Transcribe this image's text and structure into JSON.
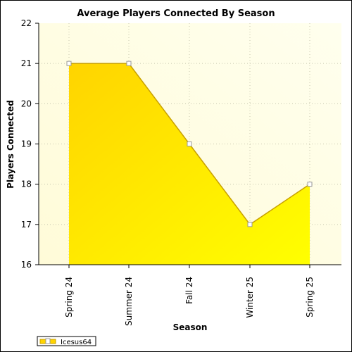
{
  "chart_data": {
    "type": "area",
    "title": "Average Players Connected By Season",
    "xlabel": "Season",
    "ylabel": "Players Connected",
    "categories": [
      "Spring 24",
      "Summer 24",
      "Fall 24",
      "Winter 25",
      "Spring 25"
    ],
    "series": [
      {
        "name": "Icesus64",
        "values": [
          21,
          21,
          19,
          17,
          18
        ]
      }
    ],
    "ylim": [
      16,
      22
    ],
    "yticks": [
      "16",
      "17",
      "18",
      "19",
      "20",
      "21",
      "22"
    ],
    "grid": true,
    "legend_position": "bottom-left",
    "colors": {
      "fill_start": "#ffd400",
      "fill_end": "#ffff00",
      "line": "#c8a000",
      "plot_bg_start": "#fffbd8",
      "plot_bg_end": "#ffffee"
    }
  }
}
